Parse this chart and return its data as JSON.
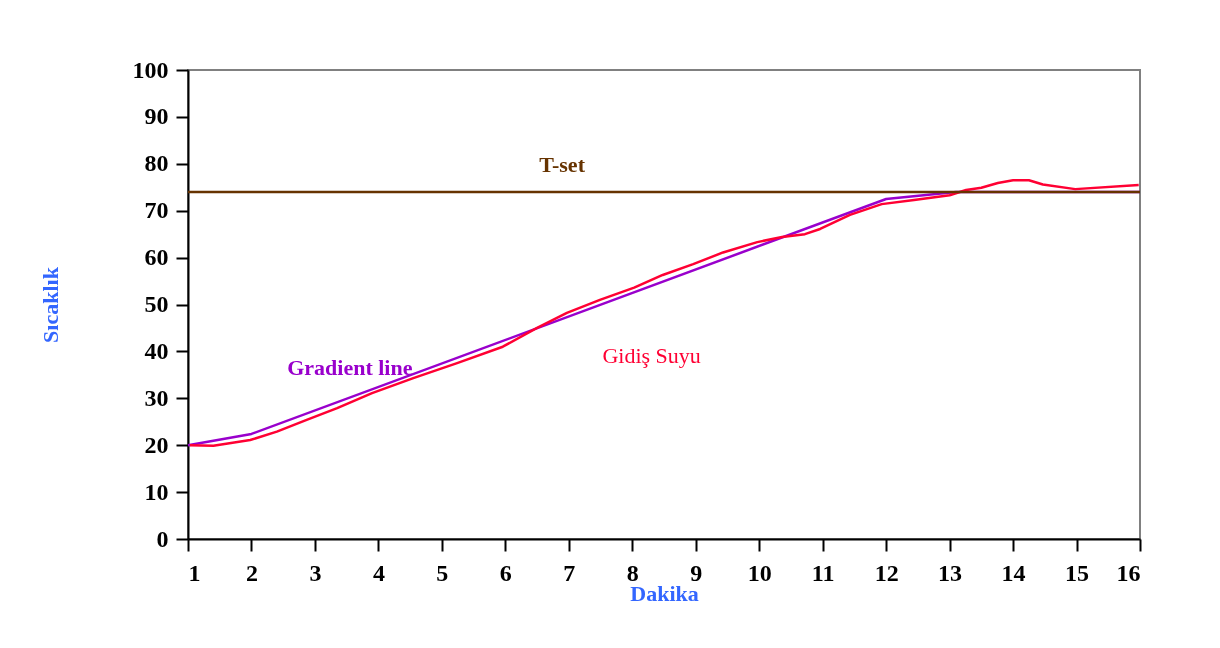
{
  "chart_data": {
    "type": "line",
    "xlabel": "Dakika",
    "ylabel": "Sıcaklık",
    "xlim": [
      1,
      16
    ],
    "xticks": [
      1,
      2,
      3,
      4,
      5,
      6,
      7,
      8,
      9,
      10,
      11,
      12,
      13,
      14,
      15,
      16
    ],
    "ylim": [
      0,
      100
    ],
    "yticks": [
      0,
      10,
      20,
      30,
      40,
      50,
      60,
      70,
      80,
      90,
      100
    ],
    "grid": false,
    "legend": false,
    "marker": "none",
    "line_style": "solid",
    "series": [
      {
        "name": "Gradient line",
        "color": "#9900cc",
        "x": [
          1,
          2,
          12,
          13.1,
          16
        ],
        "values": [
          20,
          22.4,
          72.5,
          74,
          74
        ]
      },
      {
        "name": "Gidiş Suyu",
        "color": "#ff0033",
        "x": [
          1.03,
          1.4,
          1.98,
          2.4,
          2.87,
          3.35,
          3.9,
          4.55,
          5.24,
          5.96,
          6.5,
          6.97,
          7.49,
          8.03,
          8.48,
          8.96,
          9.43,
          9.97,
          10.36,
          10.72,
          10.96,
          11.43,
          11.93,
          12.44,
          13.0,
          13.26,
          13.5,
          13.76,
          14.0,
          14.25,
          14.47,
          14.98,
          15.98
        ],
        "values": [
          20,
          19.9,
          21.1,
          22.9,
          25.4,
          27.9,
          31.1,
          34.3,
          37.5,
          41,
          45,
          48.2,
          51,
          53.6,
          56.3,
          58.6,
          61.1,
          63.3,
          64.4,
          65,
          66.1,
          69.1,
          71.4,
          72.3,
          73.3,
          74.4,
          74.9,
          75.9,
          76.5,
          76.5,
          75.6,
          74.6,
          75.5
        ]
      }
    ],
    "ref_lines": [
      {
        "axis": "y",
        "value": 74,
        "label": "T-set",
        "color": "#663300"
      }
    ]
  }
}
